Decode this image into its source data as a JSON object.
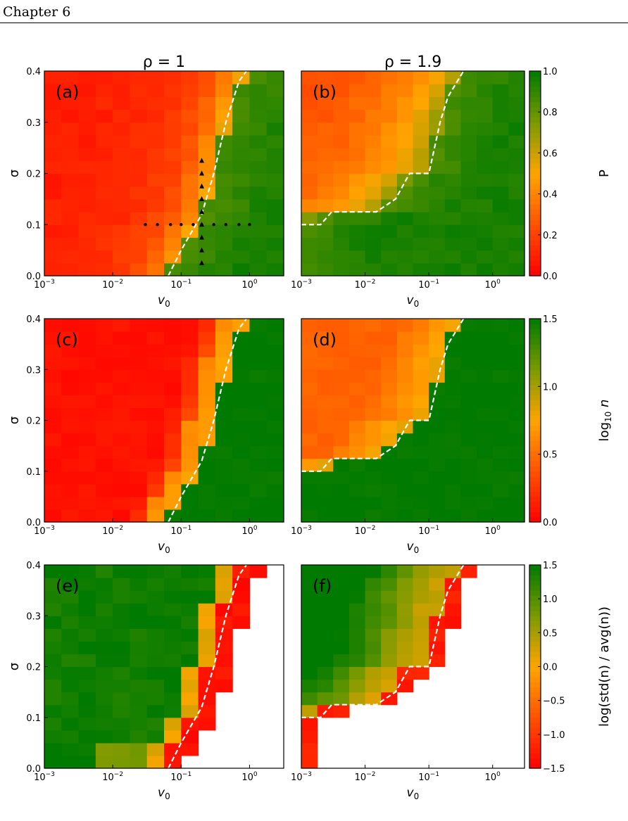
{
  "page": {
    "header": "Chapter 6"
  },
  "colors": {
    "red": "#ff0000",
    "orange": "#ffa500",
    "yellow": "#c8b400",
    "olive": "#7a9a00",
    "green": "#007a00",
    "dash": "#ffffff",
    "marker": "#000000"
  },
  "chart_data": [
    {
      "id": "a",
      "panel_label": "(a)",
      "column_title": "ρ = 1",
      "type": "heatmap",
      "metric": "P",
      "xlabel": "v_0",
      "xscale": "log",
      "xlim": [
        0.001,
        3.16
      ],
      "ylabel": "σ",
      "ylim": [
        0.0,
        0.4
      ],
      "x_ticks": [
        "10^-3",
        "10^-2",
        "10^-1",
        "10^0"
      ],
      "y_ticks": [
        "0.0",
        "0.1",
        "0.2",
        "0.3",
        "0.4"
      ],
      "boundary": [
        [
          0.065,
          0.0
        ],
        [
          0.1,
          0.05
        ],
        [
          0.2,
          0.12
        ],
        [
          0.3,
          0.2
        ],
        [
          0.45,
          0.3
        ],
        [
          0.7,
          0.38
        ],
        [
          0.9,
          0.4
        ]
      ],
      "markers_dots": [
        [
          0.03,
          0.1
        ],
        [
          0.045,
          0.1
        ],
        [
          0.07,
          0.1
        ],
        [
          0.1,
          0.1
        ],
        [
          0.15,
          0.1
        ],
        [
          0.2,
          0.1
        ],
        [
          0.3,
          0.1
        ],
        [
          0.45,
          0.1
        ],
        [
          0.7,
          0.1
        ],
        [
          1.0,
          0.1
        ]
      ],
      "markers_triangles": [
        [
          0.2,
          0.025
        ],
        [
          0.2,
          0.05
        ],
        [
          0.2,
          0.075
        ],
        [
          0.2,
          0.1
        ],
        [
          0.2,
          0.125
        ],
        [
          0.2,
          0.15
        ],
        [
          0.2,
          0.175
        ],
        [
          0.2,
          0.2
        ],
        [
          0.2,
          0.225
        ]
      ]
    },
    {
      "id": "b",
      "panel_label": "(b)",
      "column_title": "ρ = 1.9",
      "type": "heatmap",
      "metric": "P",
      "xlabel": "v_0",
      "xscale": "log",
      "xlim": [
        0.001,
        3.16
      ],
      "ylabel": "",
      "ylim": [
        0.0,
        0.4
      ],
      "x_ticks": [
        "10^-3",
        "10^-2",
        "10^-1",
        "10^0"
      ],
      "boundary": [
        [
          0.001,
          0.1
        ],
        [
          0.002,
          0.1
        ],
        [
          0.003,
          0.125
        ],
        [
          0.015,
          0.125
        ],
        [
          0.03,
          0.15
        ],
        [
          0.05,
          0.2
        ],
        [
          0.1,
          0.2
        ],
        [
          0.15,
          0.3
        ],
        [
          0.2,
          0.35
        ],
        [
          0.35,
          0.4
        ]
      ],
      "colorbar": {
        "label": "P",
        "range": [
          0.0,
          1.0
        ],
        "ticks": [
          "0.0",
          "0.2",
          "0.4",
          "0.6",
          "0.8",
          "1.0"
        ]
      }
    },
    {
      "id": "c",
      "panel_label": "(c)",
      "type": "heatmap",
      "metric": "log10_n",
      "xlabel": "v_0",
      "xscale": "log",
      "xlim": [
        0.001,
        3.16
      ],
      "ylabel": "σ",
      "ylim": [
        0.0,
        0.4
      ],
      "x_ticks": [
        "10^-3",
        "10^-2",
        "10^-1",
        "10^0"
      ],
      "y_ticks": [
        "0.0",
        "0.1",
        "0.2",
        "0.3",
        "0.4"
      ],
      "boundary": [
        [
          0.065,
          0.0
        ],
        [
          0.1,
          0.05
        ],
        [
          0.2,
          0.12
        ],
        [
          0.3,
          0.2
        ],
        [
          0.45,
          0.3
        ],
        [
          0.7,
          0.38
        ],
        [
          0.9,
          0.4
        ]
      ]
    },
    {
      "id": "d",
      "panel_label": "(d)",
      "type": "heatmap",
      "metric": "log10_n",
      "xlabel": "v_0",
      "xscale": "log",
      "xlim": [
        0.001,
        3.16
      ],
      "ylabel": "",
      "ylim": [
        0.0,
        0.4
      ],
      "x_ticks": [
        "10^-3",
        "10^-2",
        "10^-1",
        "10^0"
      ],
      "boundary": [
        [
          0.001,
          0.1
        ],
        [
          0.002,
          0.1
        ],
        [
          0.003,
          0.125
        ],
        [
          0.015,
          0.125
        ],
        [
          0.03,
          0.15
        ],
        [
          0.05,
          0.2
        ],
        [
          0.1,
          0.2
        ],
        [
          0.15,
          0.3
        ],
        [
          0.2,
          0.35
        ],
        [
          0.35,
          0.4
        ]
      ],
      "colorbar": {
        "label": "log10 n",
        "range": [
          0.0,
          1.5
        ],
        "ticks": [
          "0.0",
          "0.5",
          "1.0",
          "1.5"
        ]
      }
    },
    {
      "id": "e",
      "panel_label": "(e)",
      "type": "heatmap",
      "metric": "log_std_over_avg",
      "xlabel": "v_0",
      "xscale": "log",
      "xlim": [
        0.001,
        3.16
      ],
      "ylabel": "σ",
      "ylim": [
        0.0,
        0.4
      ],
      "x_ticks": [
        "10^-3",
        "10^-2",
        "10^-1",
        "10^0"
      ],
      "y_ticks": [
        "0.0",
        "0.1",
        "0.2",
        "0.3",
        "0.4"
      ],
      "boundary": [
        [
          0.065,
          0.0
        ],
        [
          0.1,
          0.05
        ],
        [
          0.2,
          0.12
        ],
        [
          0.3,
          0.2
        ],
        [
          0.45,
          0.3
        ],
        [
          0.7,
          0.38
        ],
        [
          0.9,
          0.4
        ]
      ]
    },
    {
      "id": "f",
      "panel_label": "(f)",
      "type": "heatmap",
      "metric": "log_std_over_avg",
      "xlabel": "v_0",
      "xscale": "log",
      "xlim": [
        0.001,
        3.16
      ],
      "ylabel": "",
      "ylim": [
        0.0,
        0.4
      ],
      "x_ticks": [
        "10^-3",
        "10^-2",
        "10^-1",
        "10^0"
      ],
      "boundary": [
        [
          0.001,
          0.1
        ],
        [
          0.002,
          0.1
        ],
        [
          0.003,
          0.125
        ],
        [
          0.015,
          0.125
        ],
        [
          0.03,
          0.15
        ],
        [
          0.05,
          0.2
        ],
        [
          0.1,
          0.2
        ],
        [
          0.15,
          0.3
        ],
        [
          0.2,
          0.35
        ],
        [
          0.35,
          0.4
        ]
      ],
      "colorbar": {
        "label": "log(std(n) / avg(n))",
        "range": [
          -1.5,
          1.5
        ],
        "ticks": [
          "−1.5",
          "−1.0",
          "−0.5",
          "0.0",
          "0.5",
          "1.0",
          "1.5"
        ]
      }
    }
  ]
}
